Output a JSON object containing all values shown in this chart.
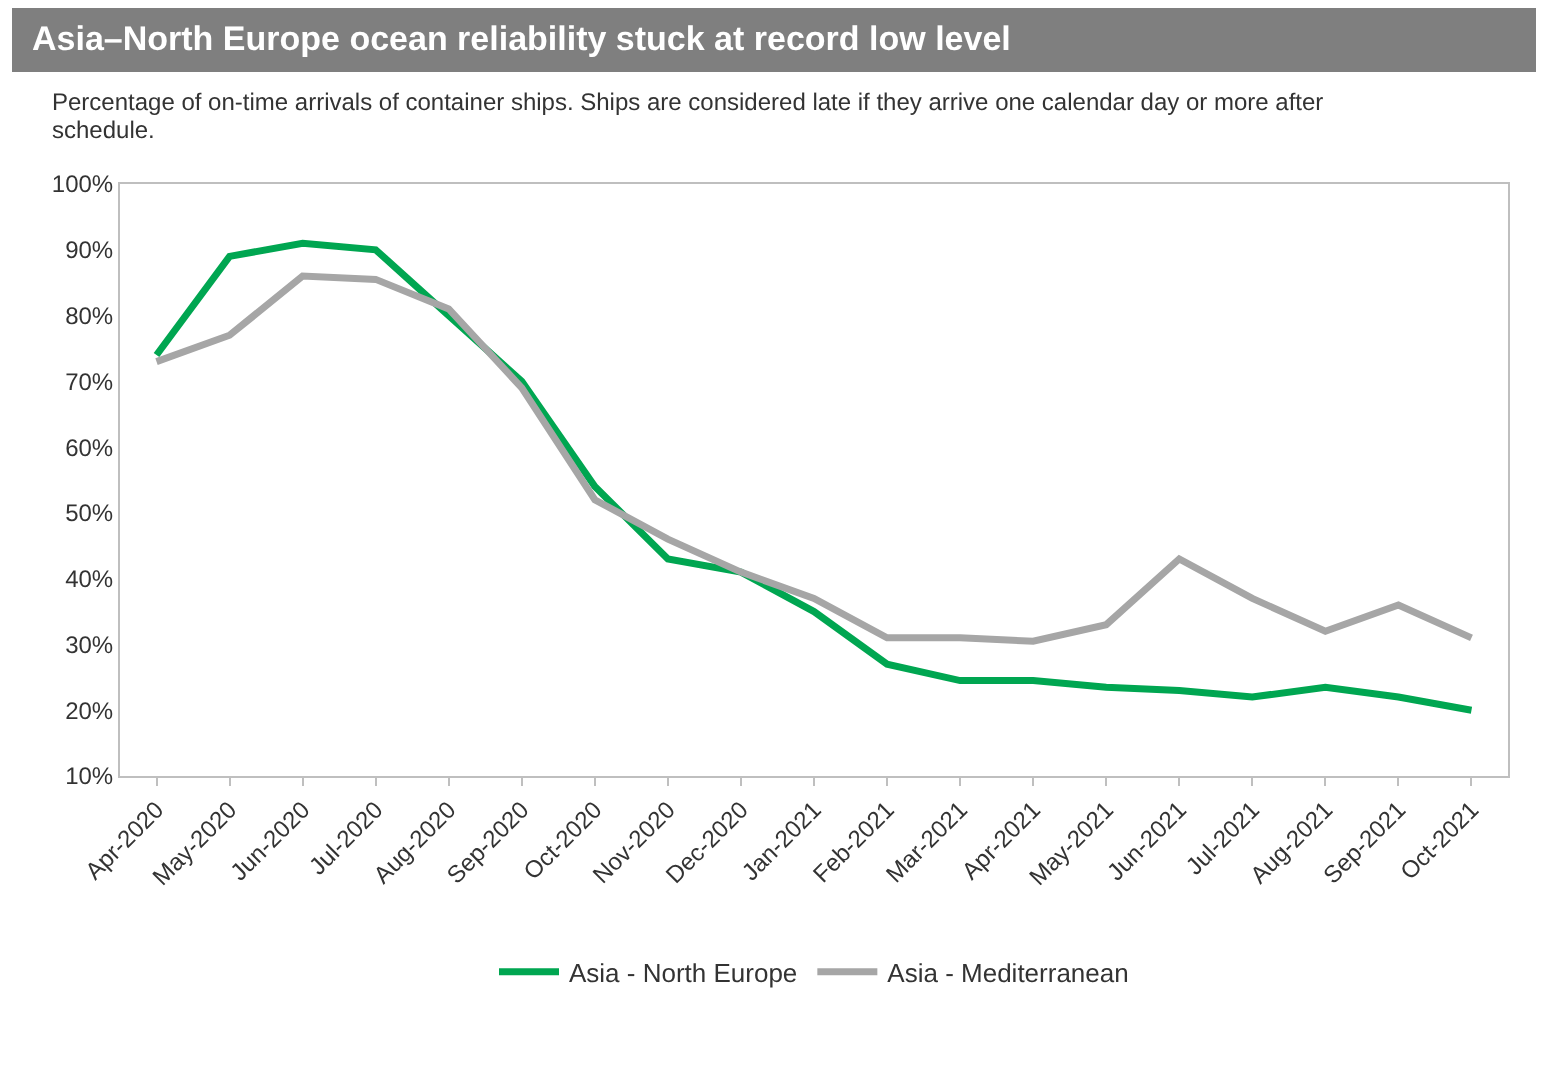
{
  "chart_data": {
    "type": "line",
    "title": "Asia–North Europe ocean reliability stuck at record low level",
    "subtitle": "Percentage of on-time arrivals of container ships. Ships are considered late if they arrive one calendar day or more after schedule.",
    "categories": [
      "Apr-2020",
      "May-2020",
      "Jun-2020",
      "Jul-2020",
      "Aug-2020",
      "Sep-2020",
      "Oct-2020",
      "Nov-2020",
      "Dec-2020",
      "Jan-2021",
      "Feb-2021",
      "Mar-2021",
      "Apr-2021",
      "May-2021",
      "Jun-2021",
      "Jul-2021",
      "Aug-2021",
      "Sep-2021",
      "Oct-2021"
    ],
    "series": [
      {
        "name": "Asia - North Europe",
        "color": "#00a651",
        "values": [
          74,
          89,
          91,
          90,
          80,
          70,
          54,
          43,
          41,
          35,
          27,
          24.5,
          24.5,
          23.5,
          23,
          22,
          23.5,
          22,
          20
        ]
      },
      {
        "name": "Asia - Mediterranean",
        "color": "#a6a6a6",
        "values": [
          73,
          77,
          86,
          85.5,
          81,
          69,
          52,
          46,
          41,
          37,
          31,
          31,
          30.5,
          33,
          43,
          37,
          32,
          36,
          31
        ]
      }
    ],
    "ylim": [
      10,
      100
    ],
    "yticks": [
      {
        "value": 10,
        "label": "10%"
      },
      {
        "value": 20,
        "label": "20%"
      },
      {
        "value": 30,
        "label": "30%"
      },
      {
        "value": 40,
        "label": "40%"
      },
      {
        "value": 50,
        "label": "50%"
      },
      {
        "value": 60,
        "label": "60%"
      },
      {
        "value": 70,
        "label": "70%"
      },
      {
        "value": 80,
        "label": "80%"
      },
      {
        "value": 90,
        "label": "90%"
      },
      {
        "value": 100,
        "label": "100%"
      }
    ],
    "grid": false,
    "legend": "bottom",
    "marker": "none",
    "line_style": "solid"
  }
}
